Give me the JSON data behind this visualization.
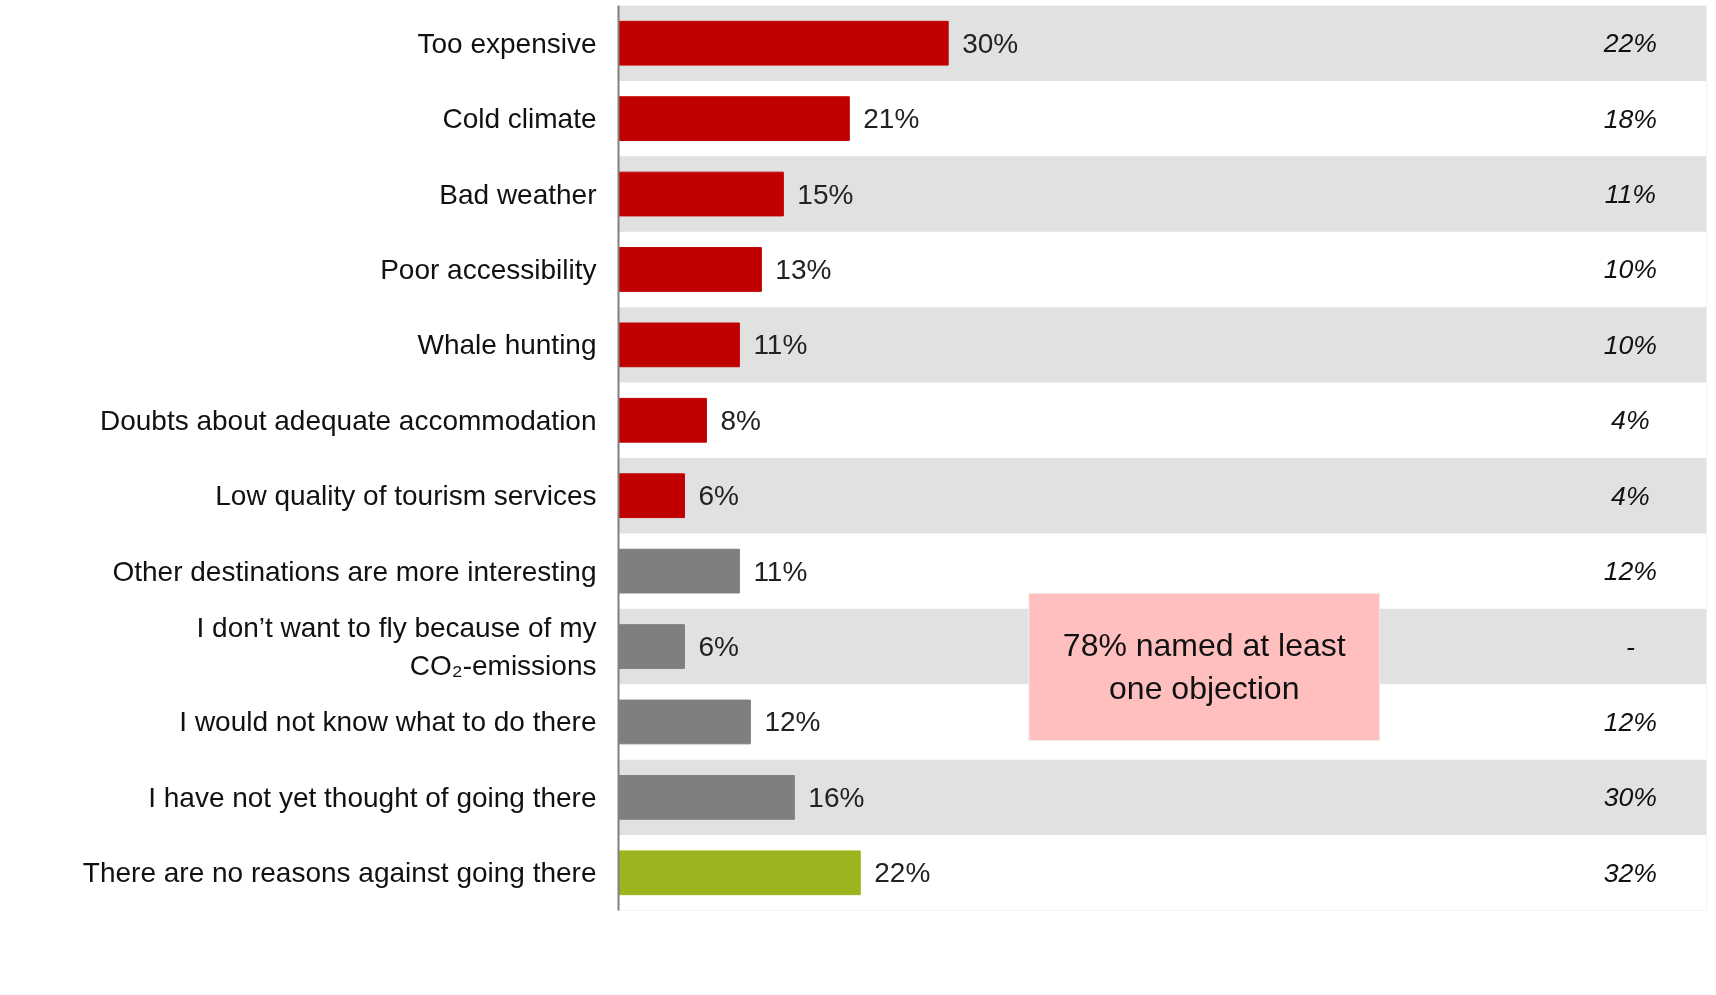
{
  "chart_data": {
    "type": "bar",
    "orientation": "horizontal",
    "categories": [
      "Too expensive",
      "Cold climate",
      "Bad weather",
      "Poor accessibility",
      "Whale hunting",
      "Doubts about adequate accommodation",
      "Low quality of tourism services",
      "Other destinations are more interesting",
      "I don’t want to fly because of my CO₂-emissions",
      "I would not know what to do there",
      "I have not yet thought of going there",
      "There are no reasons against going there"
    ],
    "values": [
      30,
      21,
      15,
      13,
      11,
      8,
      6,
      11,
      6,
      12,
      16,
      22
    ],
    "colors": [
      "#c00000",
      "#c00000",
      "#c00000",
      "#c00000",
      "#c00000",
      "#c00000",
      "#c00000",
      "#7f7f7f",
      "#7f7f7f",
      "#7f7f7f",
      "#7f7f7f",
      "#9bb51f"
    ],
    "value_labels": [
      "30%",
      "21%",
      "15%",
      "13%",
      "11%",
      "8%",
      "6%",
      "11%",
      "6%",
      "12%",
      "16%",
      "22%"
    ],
    "xlim": [
      0,
      99
    ],
    "annotations": [
      "22%",
      "18%",
      "11%",
      "10%",
      "10%",
      "4%",
      "4%",
      "12%",
      "-",
      "12%",
      "30%",
      "32%",
      "78% named at least one objection"
    ],
    "grid": false
  }
}
